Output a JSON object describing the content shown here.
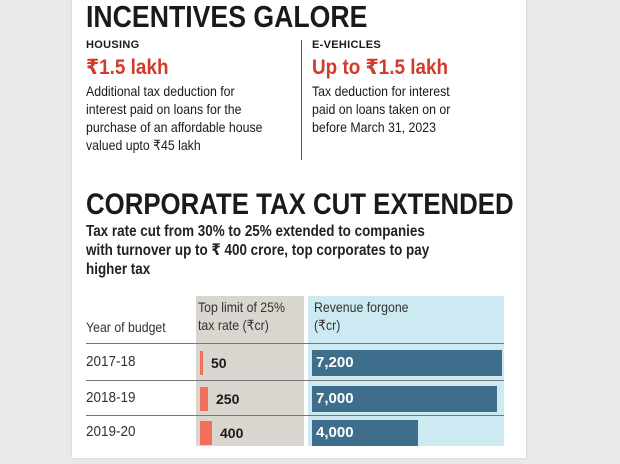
{
  "incentives": {
    "title": "INCENTIVES GALORE",
    "housing": {
      "kicker": "HOUSING",
      "amount": "₹1.5 lakh",
      "lines": [
        "Additional tax deduction for",
        "interest paid on loans for the",
        "purchase of an affordable house",
        "valued upto ₹45 lakh"
      ]
    },
    "evehicles": {
      "kicker": "E-VEHICLES",
      "amount": "Up to ₹1.5 lakh",
      "lines": [
        "Tax deduction for interest",
        "paid on loans taken on or",
        "before March 31, 2023"
      ]
    }
  },
  "corporate": {
    "title": "CORPORATE TAX CUT EXTENDED",
    "intro_lines": [
      "Tax rate cut from 30% to 25% extended to companies",
      "with turnover up to ₹ 400 crore, top corporates to pay",
      "higher tax"
    ]
  },
  "chart_data": {
    "type": "table",
    "title": "",
    "columns": {
      "year": "Year of budget",
      "limit_line1": "Top limit of 25%",
      "limit_line2": "tax rate (₹cr)",
      "revenue_line1": "Revenue forgone",
      "revenue_line2": "(₹cr)"
    },
    "categories": [
      "2017-18",
      "2018-19",
      "2019-20"
    ],
    "series": [
      {
        "name": "Top limit of 25% tax rate (₹cr)",
        "values": [
          50,
          250,
          400
        ],
        "labels": [
          "50",
          "250",
          "400"
        ]
      },
      {
        "name": "Revenue forgone (₹cr)",
        "values": [
          7200,
          7000,
          4000
        ],
        "labels": [
          "7,200",
          "7,000",
          "4,000"
        ]
      }
    ],
    "limit_max": 400,
    "revenue_max": 7200
  },
  "colors": {
    "accent_red": "#d43a2a",
    "limit_bar": "#f2705a",
    "revenue_bar": "#3e6e8c",
    "limit_band": "#d8d6cf",
    "revenue_band": "#cde9f1"
  }
}
